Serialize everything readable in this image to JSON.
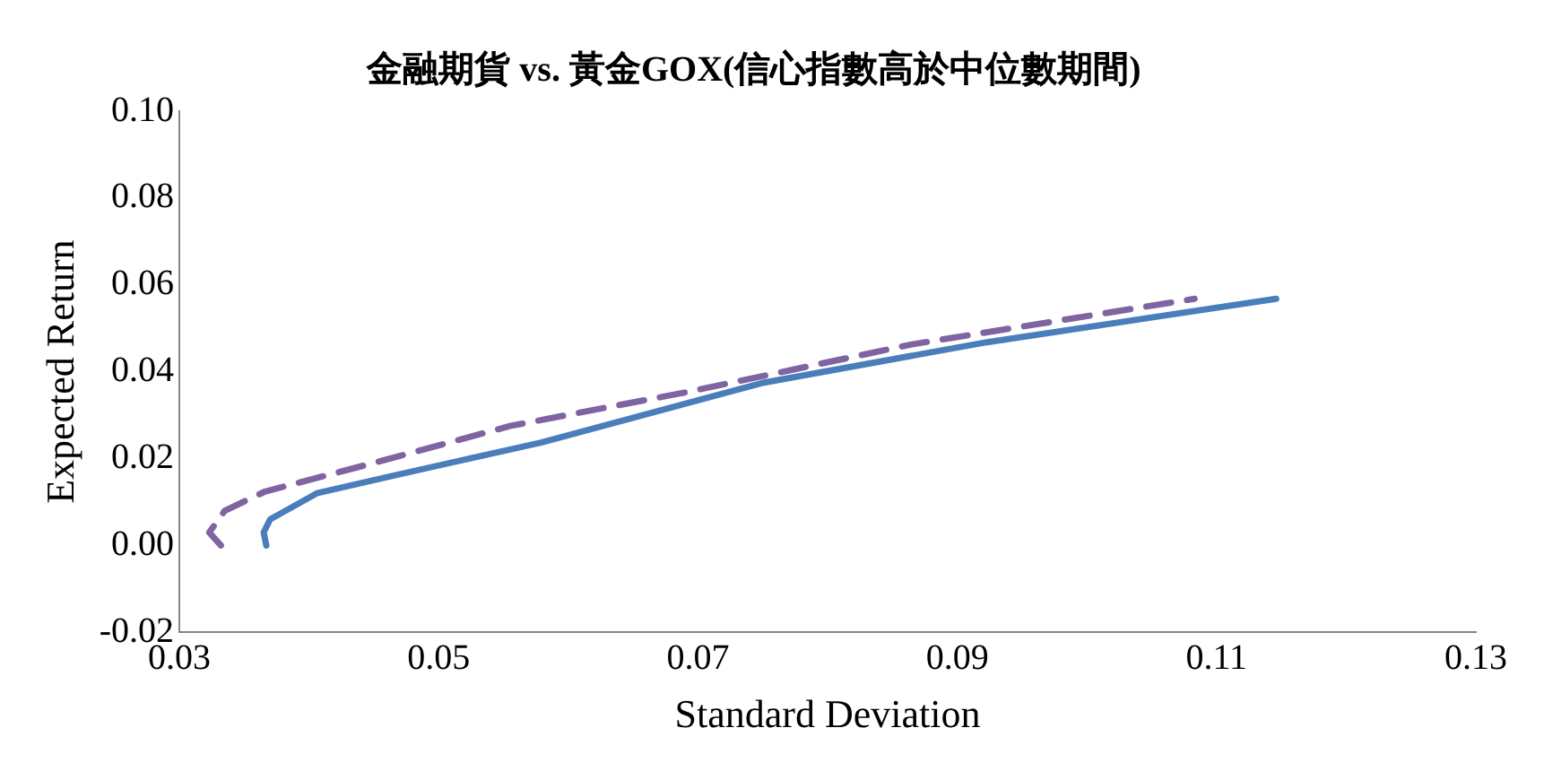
{
  "chart_data": {
    "type": "line",
    "title": "金融期貨 vs. 黃金GOX(信心指數高於中位數期間)",
    "xlabel": "Standard Deviation",
    "ylabel": "Expected Return",
    "xlim": [
      0.03,
      0.13
    ],
    "xticks": [
      {
        "value": 0.03,
        "label": "0.03"
      },
      {
        "value": 0.05,
        "label": "0.05"
      },
      {
        "value": 0.07,
        "label": "0.07"
      },
      {
        "value": 0.09,
        "label": "0.09"
      },
      {
        "value": 0.11,
        "label": "0.11"
      },
      {
        "value": 0.13,
        "label": "0.13"
      }
    ],
    "ylim": [
      -0.02,
      0.1
    ],
    "yticks": [
      {
        "value": -0.02,
        "label": "-0.02"
      },
      {
        "value": 0,
        "label": "0.00"
      },
      {
        "value": 0.02,
        "label": "0.02"
      },
      {
        "value": 0.04,
        "label": "0.04"
      },
      {
        "value": 0.06,
        "label": "0.06"
      },
      {
        "value": 0.08,
        "label": "0.08"
      },
      {
        "value": 0.1,
        "label": "0.10"
      }
    ],
    "grid": false,
    "legend": false,
    "marker": "none",
    "series": [
      {
        "color": "#4a7ebb",
        "line_style": "solid",
        "x": [
          0.0367,
          0.0365,
          0.037,
          0.0406,
          0.0464,
          0.0579,
          0.0751,
          0.0923,
          0.1146
        ],
        "values": [
          0,
          0.003,
          0.006,
          0.012,
          0.016,
          0.0237,
          0.0375,
          0.0468,
          0.0568
        ]
      },
      {
        "color": "#8064a2",
        "line_style": "dashed",
        "x": [
          0.0332,
          0.0323,
          0.0335,
          0.0366,
          0.045,
          0.0555,
          0.0693,
          0.0865,
          0.1083
        ],
        "values": [
          0,
          0.003,
          0.008,
          0.0124,
          0.019,
          0.0275,
          0.0354,
          0.0463,
          0.0568
        ]
      }
    ]
  }
}
